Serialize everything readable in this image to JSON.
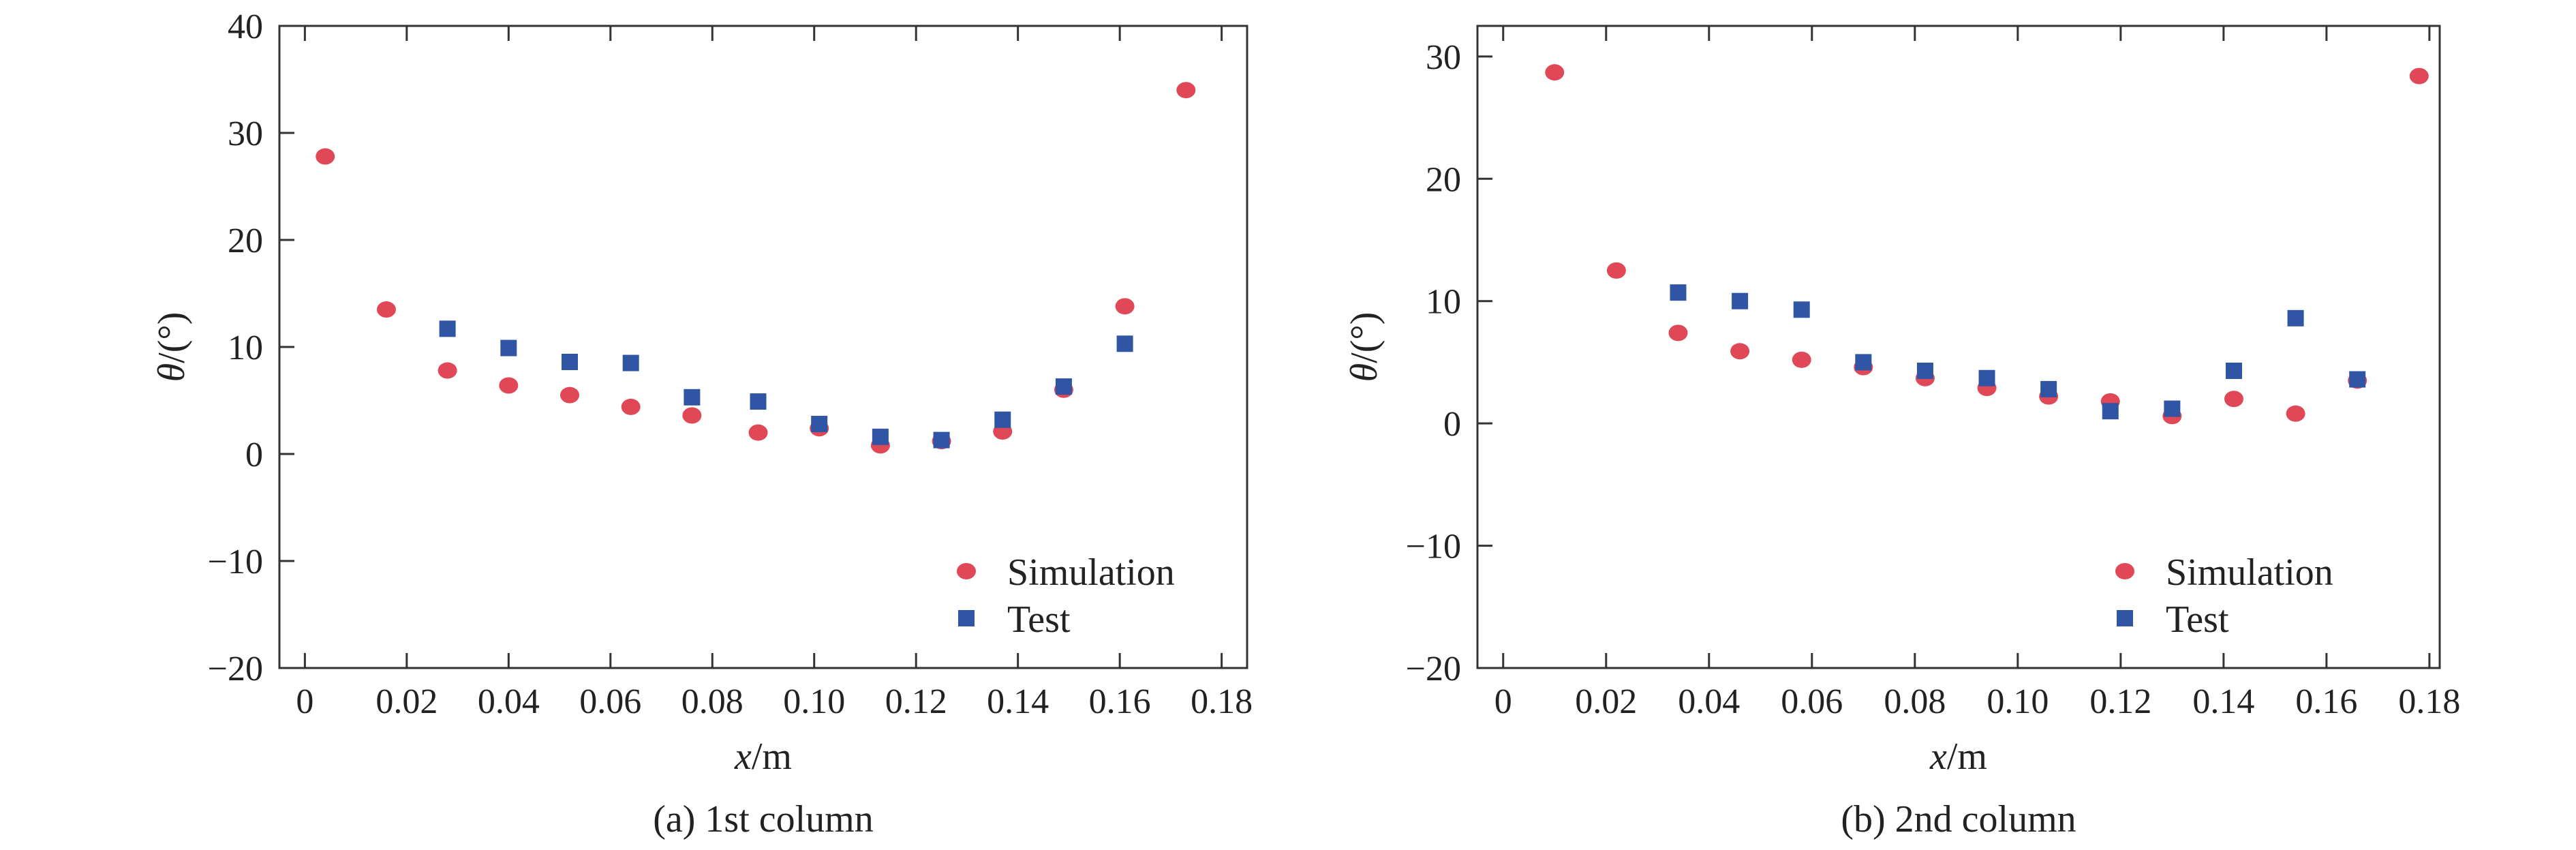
{
  "chart_data": [
    {
      "type": "scatter",
      "caption": "(a) 1st column",
      "xlabel_var": "x",
      "xlabel_unit": "/m",
      "ylabel_var": "θ",
      "ylabel_unit": "/(°)",
      "xlim": [
        -0.005,
        0.185
      ],
      "ylim": [
        -20,
        40
      ],
      "xticks": [
        0,
        0.02,
        0.04,
        0.06,
        0.08,
        0.1,
        0.12,
        0.14,
        0.16,
        0.18
      ],
      "xtick_labels": [
        "0",
        "0.02",
        "0.04",
        "0.06",
        "0.08",
        "0.10",
        "0.12",
        "0.14",
        "0.16",
        "0.18"
      ],
      "yticks": [
        -20,
        -10,
        0,
        10,
        20,
        30,
        40
      ],
      "ytick_labels": [
        "−20",
        "−10",
        "0",
        "10",
        "20",
        "30",
        "40"
      ],
      "legend_position": "bottom-right",
      "series": [
        {
          "name": "Simulation",
          "marker": "circle",
          "color": "#e04858",
          "points": [
            [
              0.004,
              27.8
            ],
            [
              0.016,
              13.5
            ],
            [
              0.028,
              7.8
            ],
            [
              0.04,
              6.4
            ],
            [
              0.052,
              5.5
            ],
            [
              0.064,
              4.4
            ],
            [
              0.076,
              3.6
            ],
            [
              0.089,
              2.0
            ],
            [
              0.101,
              2.4
            ],
            [
              0.113,
              0.8
            ],
            [
              0.125,
              1.2
            ],
            [
              0.137,
              2.1
            ],
            [
              0.149,
              6.0
            ],
            [
              0.161,
              13.8
            ],
            [
              0.173,
              34.0
            ]
          ]
        },
        {
          "name": "Test",
          "marker": "square",
          "color": "#2f55a4",
          "points": [
            [
              0.028,
              11.7
            ],
            [
              0.04,
              9.9
            ],
            [
              0.052,
              8.6
            ],
            [
              0.064,
              8.5
            ],
            [
              0.076,
              5.3
            ],
            [
              0.089,
              4.9
            ],
            [
              0.101,
              2.8
            ],
            [
              0.113,
              1.6
            ],
            [
              0.125,
              1.3
            ],
            [
              0.137,
              3.2
            ],
            [
              0.149,
              6.3
            ],
            [
              0.161,
              10.3
            ]
          ]
        }
      ]
    },
    {
      "type": "scatter",
      "caption": "(b) 2nd column",
      "xlabel_var": "x",
      "xlabel_unit": "/m",
      "ylabel_var": "θ",
      "ylabel_unit": "/(°)",
      "xlim": [
        -0.005,
        0.182
      ],
      "ylim": [
        -20,
        32.5
      ],
      "xticks": [
        0,
        0.02,
        0.04,
        0.06,
        0.08,
        0.1,
        0.12,
        0.14,
        0.16,
        0.18
      ],
      "xtick_labels": [
        "0",
        "0.02",
        "0.04",
        "0.06",
        "0.08",
        "0.10",
        "0.12",
        "0.14",
        "0.16",
        "0.18"
      ],
      "yticks": [
        -20,
        -10,
        0,
        10,
        20,
        30
      ],
      "ytick_labels": [
        "−20",
        "−10",
        "0",
        "10",
        "20",
        "30"
      ],
      "legend_position": "bottom-right",
      "series": [
        {
          "name": "Simulation",
          "marker": "circle",
          "color": "#e04858",
          "points": [
            [
              0.01,
              28.7
            ],
            [
              0.022,
              12.5
            ],
            [
              0.034,
              7.4
            ],
            [
              0.046,
              5.9
            ],
            [
              0.058,
              5.2
            ],
            [
              0.07,
              4.6
            ],
            [
              0.082,
              3.7
            ],
            [
              0.094,
              2.9
            ],
            [
              0.106,
              2.2
            ],
            [
              0.118,
              1.8
            ],
            [
              0.13,
              0.6
            ],
            [
              0.142,
              2.0
            ],
            [
              0.154,
              0.8
            ],
            [
              0.166,
              3.5
            ],
            [
              0.178,
              28.4
            ]
          ]
        },
        {
          "name": "Test",
          "marker": "square",
          "color": "#2f55a4",
          "points": [
            [
              0.034,
              10.7
            ],
            [
              0.046,
              10.0
            ],
            [
              0.058,
              9.3
            ],
            [
              0.07,
              5.0
            ],
            [
              0.082,
              4.3
            ],
            [
              0.094,
              3.7
            ],
            [
              0.106,
              2.8
            ],
            [
              0.118,
              1.0
            ],
            [
              0.13,
              1.2
            ],
            [
              0.142,
              4.3
            ],
            [
              0.154,
              8.6
            ],
            [
              0.166,
              3.6
            ]
          ]
        }
      ]
    }
  ]
}
